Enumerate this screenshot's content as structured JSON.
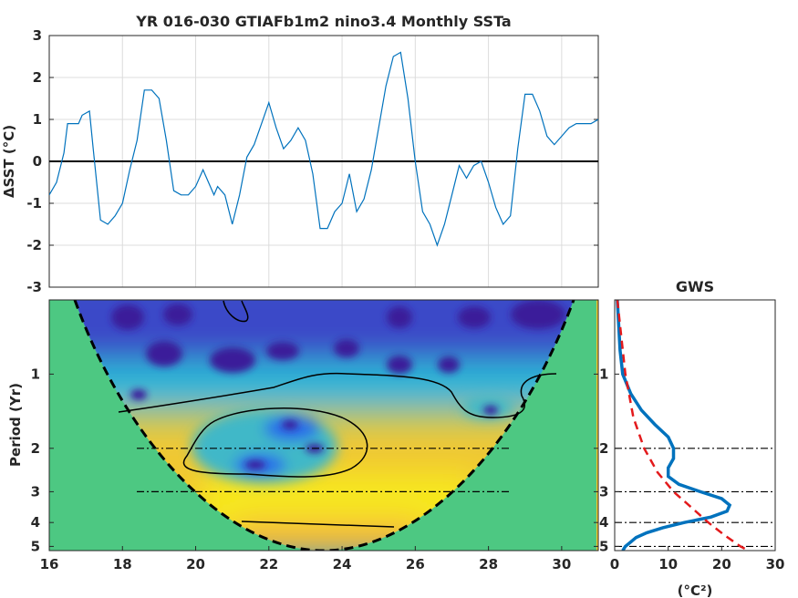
{
  "chart_data": [
    {
      "type": "line",
      "title": "YR 016-030 GTIAFb1m2 nino3.4 Monthly SSTa",
      "ylabel": "ΔSST (°C)",
      "xlim": [
        16,
        31
      ],
      "ylim": [
        -3,
        3
      ],
      "yticks": [
        "3",
        "2",
        "1",
        "0",
        "-1",
        "-2",
        "-3"
      ],
      "zero_line": 0,
      "line_color": "#0072bd",
      "x": [
        16.0,
        16.2,
        16.4,
        16.5,
        16.6,
        16.8,
        16.9,
        17.1,
        17.2,
        17.4,
        17.6,
        17.8,
        18.0,
        18.2,
        18.4,
        18.6,
        18.8,
        19.0,
        19.2,
        19.4,
        19.6,
        19.8,
        20.0,
        20.2,
        20.4,
        20.5,
        20.6,
        20.8,
        21.0,
        21.2,
        21.4,
        21.6,
        21.8,
        22.0,
        22.2,
        22.4,
        22.6,
        22.8,
        23.0,
        23.2,
        23.4,
        23.6,
        23.8,
        24.0,
        24.2,
        24.4,
        24.6,
        24.8,
        25.0,
        25.2,
        25.4,
        25.6,
        25.8,
        26.0,
        26.2,
        26.4,
        26.6,
        26.8,
        27.0,
        27.2,
        27.4,
        27.6,
        27.8,
        28.0,
        28.2,
        28.4,
        28.6,
        28.8,
        29.0,
        29.2,
        29.4,
        29.6,
        29.8,
        30.0,
        30.2,
        30.4,
        30.6,
        30.8,
        31.0
      ],
      "y": [
        -0.8,
        -0.5,
        0.2,
        0.9,
        0.9,
        0.9,
        1.1,
        1.2,
        0.3,
        -1.4,
        -1.5,
        -1.3,
        -1.0,
        -0.2,
        0.5,
        1.7,
        1.7,
        1.5,
        0.5,
        -0.7,
        -0.8,
        -0.8,
        -0.6,
        -0.2,
        -0.6,
        -0.8,
        -0.6,
        -0.8,
        -1.5,
        -0.8,
        0.1,
        0.4,
        0.9,
        1.4,
        0.8,
        0.3,
        0.5,
        0.8,
        0.5,
        -0.3,
        -1.6,
        -1.6,
        -1.2,
        -1.0,
        -0.3,
        -1.2,
        -0.9,
        -0.2,
        0.8,
        1.8,
        2.5,
        2.6,
        1.5,
        0.0,
        -1.2,
        -1.5,
        -2.0,
        -1.5,
        -0.8,
        -0.1,
        -0.4,
        -0.1,
        0.0,
        -0.5,
        -1.1,
        -1.5,
        -1.3,
        0.3,
        1.6,
        1.6,
        1.2,
        0.6,
        0.4,
        0.6,
        0.8,
        0.9,
        0.9,
        0.9,
        1.0
      ]
    },
    {
      "type": "heatmap",
      "ylabel": "Period (Yr)",
      "xlim": [
        16,
        31
      ],
      "xticks": [
        "16",
        "18",
        "20",
        "22",
        "24",
        "26",
        "28",
        "30"
      ],
      "period_ticks": [
        {
          "label": "1",
          "value": 1
        },
        {
          "label": "2",
          "value": 2
        },
        {
          "label": "3",
          "value": 3
        },
        {
          "label": "4",
          "value": 4
        },
        {
          "label": "5",
          "value": 5
        }
      ],
      "period_range": [
        0.5,
        5.2
      ],
      "dash_dot_periods": [
        2,
        3
      ],
      "colors": {
        "outside_cone": "#4dc882",
        "low": "#3d2fa0",
        "mid": "#2aa8d8",
        "high": "#f0c830",
        "peak": "#f9ee1a"
      }
    },
    {
      "type": "line",
      "title": "GWS",
      "xlabel": "(°C²)",
      "xlim": [
        0,
        30
      ],
      "xticks": [
        "0",
        "10",
        "20",
        "30"
      ],
      "period_ticks": [
        "1",
        "2",
        "3",
        "4",
        "5"
      ],
      "series": [
        {
          "style": "solid",
          "color": "#0072bd",
          "periods": [
            0.5,
            0.8,
            1.0,
            1.2,
            1.4,
            1.6,
            1.8,
            2.0,
            2.2,
            2.4,
            2.6,
            2.8,
            3.0,
            3.2,
            3.4,
            3.6,
            3.8,
            4.0,
            4.2,
            4.4,
            4.6,
            4.8,
            5.0,
            5.2
          ],
          "values": [
            0.5,
            1.0,
            1.5,
            3.0,
            5.0,
            7.5,
            10.0,
            11.0,
            11.0,
            10.0,
            10.0,
            12.0,
            16.0,
            20.0,
            21.5,
            21.0,
            18.0,
            13.0,
            9.0,
            6.0,
            4.0,
            3.0,
            2.0,
            1.5
          ]
        },
        {
          "style": "dashed",
          "color": "#e31a1c",
          "periods": [
            0.5,
            1.0,
            1.5,
            2.0,
            2.5,
            3.0,
            3.5,
            4.0,
            4.5,
            5.0,
            5.2
          ],
          "values": [
            0.5,
            2.0,
            3.5,
            5.5,
            8.0,
            11.0,
            14.5,
            17.5,
            20.5,
            23.5,
            25.0
          ]
        }
      ]
    }
  ]
}
